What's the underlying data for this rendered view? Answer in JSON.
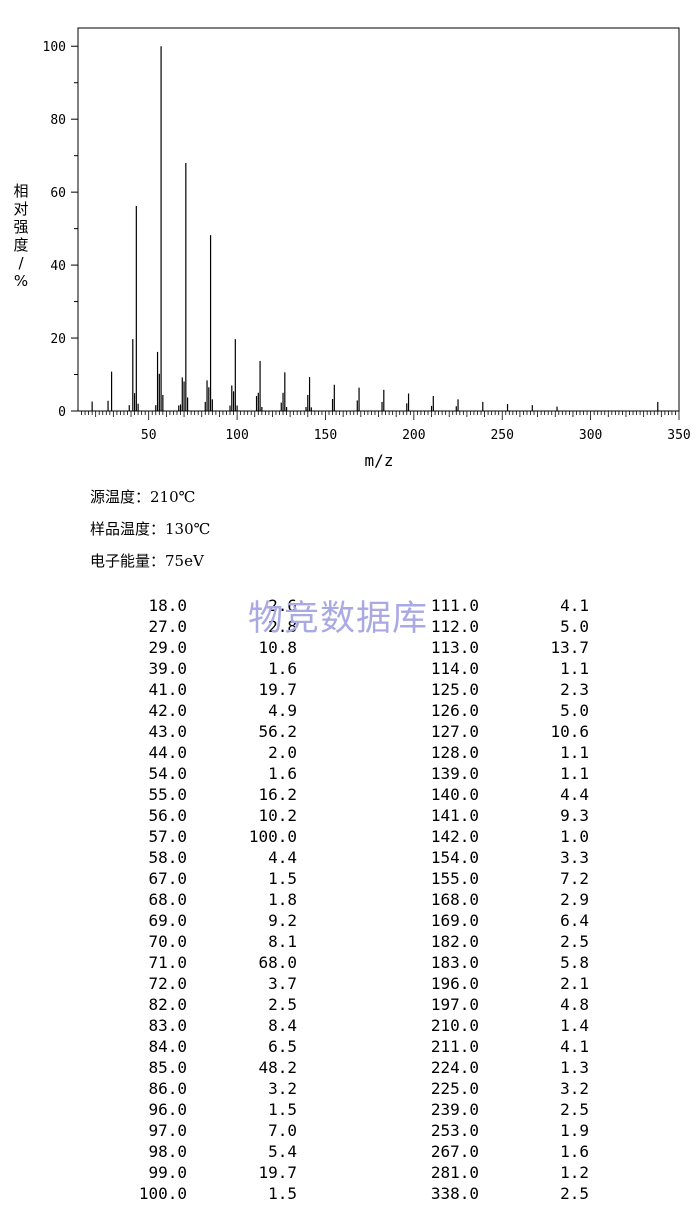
{
  "chart_data": {
    "type": "bar",
    "xlabel": "m/z",
    "ylabel": "相对强度/%",
    "xlim": [
      10,
      350
    ],
    "ylim": [
      0,
      105
    ],
    "xticks": [
      50,
      100,
      150,
      200,
      250,
      300,
      350
    ],
    "yticks": [
      0,
      20,
      40,
      60,
      80,
      100
    ],
    "grid": false,
    "peaks": [
      [
        18,
        2.6
      ],
      [
        27,
        2.8
      ],
      [
        29,
        10.8
      ],
      [
        39,
        1.6
      ],
      [
        41,
        19.7
      ],
      [
        42,
        4.9
      ],
      [
        43,
        56.2
      ],
      [
        44,
        2.0
      ],
      [
        54,
        1.6
      ],
      [
        55,
        16.2
      ],
      [
        56,
        10.2
      ],
      [
        57,
        100.0
      ],
      [
        58,
        4.4
      ],
      [
        67,
        1.5
      ],
      [
        68,
        1.8
      ],
      [
        69,
        9.2
      ],
      [
        70,
        8.1
      ],
      [
        71,
        68.0
      ],
      [
        72,
        3.7
      ],
      [
        82,
        2.5
      ],
      [
        83,
        8.4
      ],
      [
        84,
        6.5
      ],
      [
        85,
        48.2
      ],
      [
        86,
        3.2
      ],
      [
        96,
        1.5
      ],
      [
        97,
        7.0
      ],
      [
        98,
        5.4
      ],
      [
        99,
        19.7
      ],
      [
        100,
        1.5
      ],
      [
        111,
        4.1
      ],
      [
        112,
        5.0
      ],
      [
        113,
        13.7
      ],
      [
        114,
        1.1
      ],
      [
        125,
        2.3
      ],
      [
        126,
        5.0
      ],
      [
        127,
        10.6
      ],
      [
        128,
        1.1
      ],
      [
        139,
        1.1
      ],
      [
        140,
        4.4
      ],
      [
        141,
        9.3
      ],
      [
        142,
        1.0
      ],
      [
        154,
        3.3
      ],
      [
        155,
        7.2
      ],
      [
        168,
        2.9
      ],
      [
        169,
        6.4
      ],
      [
        182,
        2.5
      ],
      [
        183,
        5.8
      ],
      [
        196,
        2.1
      ],
      [
        197,
        4.8
      ],
      [
        210,
        1.4
      ],
      [
        211,
        4.1
      ],
      [
        224,
        1.3
      ],
      [
        225,
        3.2
      ],
      [
        239,
        2.5
      ],
      [
        253,
        1.9
      ],
      [
        267,
        1.6
      ],
      [
        281,
        1.2
      ],
      [
        338,
        2.5
      ]
    ]
  },
  "conditions": {
    "source_temp": "源温度：210℃",
    "sample_temp": "样品温度：130℃",
    "electron_energy": "电子能量：75eV"
  },
  "watermark": "物竞数据库",
  "table": {
    "left": [
      [
        "18.0",
        "2.6"
      ],
      [
        "27.0",
        "2.8"
      ],
      [
        "29.0",
        "10.8"
      ],
      [
        "39.0",
        "1.6"
      ],
      [
        "41.0",
        "19.7"
      ],
      [
        "42.0",
        "4.9"
      ],
      [
        "43.0",
        "56.2"
      ],
      [
        "44.0",
        "2.0"
      ],
      [
        "54.0",
        "1.6"
      ],
      [
        "55.0",
        "16.2"
      ],
      [
        "56.0",
        "10.2"
      ],
      [
        "57.0",
        "100.0"
      ],
      [
        "58.0",
        "4.4"
      ],
      [
        "67.0",
        "1.5"
      ],
      [
        "68.0",
        "1.8"
      ],
      [
        "69.0",
        "9.2"
      ],
      [
        "70.0",
        "8.1"
      ],
      [
        "71.0",
        "68.0"
      ],
      [
        "72.0",
        "3.7"
      ],
      [
        "82.0",
        "2.5"
      ],
      [
        "83.0",
        "8.4"
      ],
      [
        "84.0",
        "6.5"
      ],
      [
        "85.0",
        "48.2"
      ],
      [
        "86.0",
        "3.2"
      ],
      [
        "96.0",
        "1.5"
      ],
      [
        "97.0",
        "7.0"
      ],
      [
        "98.0",
        "5.4"
      ],
      [
        "99.0",
        "19.7"
      ],
      [
        "100.0",
        "1.5"
      ]
    ],
    "right": [
      [
        "111.0",
        "4.1"
      ],
      [
        "112.0",
        "5.0"
      ],
      [
        "113.0",
        "13.7"
      ],
      [
        "114.0",
        "1.1"
      ],
      [
        "125.0",
        "2.3"
      ],
      [
        "126.0",
        "5.0"
      ],
      [
        "127.0",
        "10.6"
      ],
      [
        "128.0",
        "1.1"
      ],
      [
        "139.0",
        "1.1"
      ],
      [
        "140.0",
        "4.4"
      ],
      [
        "141.0",
        "9.3"
      ],
      [
        "142.0",
        "1.0"
      ],
      [
        "154.0",
        "3.3"
      ],
      [
        "155.0",
        "7.2"
      ],
      [
        "168.0",
        "2.9"
      ],
      [
        "169.0",
        "6.4"
      ],
      [
        "182.0",
        "2.5"
      ],
      [
        "183.0",
        "5.8"
      ],
      [
        "196.0",
        "2.1"
      ],
      [
        "197.0",
        "4.8"
      ],
      [
        "210.0",
        "1.4"
      ],
      [
        "211.0",
        "4.1"
      ],
      [
        "224.0",
        "1.3"
      ],
      [
        "225.0",
        "3.2"
      ],
      [
        "239.0",
        "2.5"
      ],
      [
        "253.0",
        "1.9"
      ],
      [
        "267.0",
        "1.6"
      ],
      [
        "281.0",
        "1.2"
      ],
      [
        "338.0",
        "2.5"
      ]
    ]
  }
}
